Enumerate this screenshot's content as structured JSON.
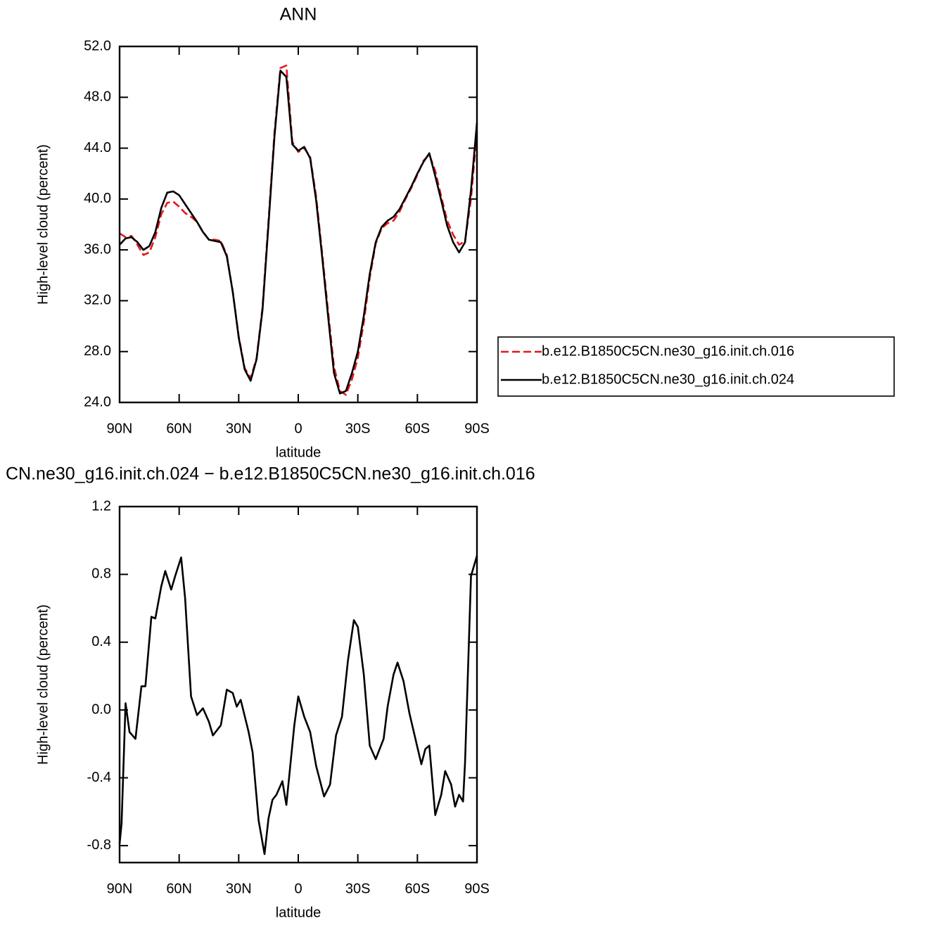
{
  "chart_data": [
    {
      "type": "line",
      "title": "ANN",
      "xlabel": "latitude",
      "ylabel": "High-level cloud (percent)",
      "x": [
        90,
        87,
        84,
        81,
        78,
        75,
        72,
        69,
        66,
        63,
        60,
        57,
        54,
        51,
        48,
        45,
        42,
        39,
        36,
        33,
        30,
        27,
        24,
        21,
        18,
        15,
        12,
        9,
        6,
        3,
        0,
        -3,
        -6,
        -9,
        -12,
        -15,
        -18,
        -21,
        -24,
        -27,
        -30,
        -33,
        -36,
        -39,
        -42,
        -45,
        -48,
        -51,
        -54,
        -57,
        -60,
        -63,
        -66,
        -69,
        -72,
        -75,
        -78,
        -81,
        -84,
        -87,
        -90
      ],
      "series": [
        {
          "name": "b.e12.B1850C5CN.ne30_g16.init.ch.016",
          "color": "#e8161b",
          "dashed": true,
          "values": [
            37.3,
            37.0,
            37.1,
            36.4,
            35.6,
            35.8,
            37.0,
            38.8,
            39.7,
            39.8,
            39.4,
            38.9,
            38.6,
            38.2,
            37.4,
            36.8,
            36.8,
            36.7,
            35.6,
            32.7,
            29.2,
            26.7,
            25.9,
            27.5,
            31.5,
            38.3,
            45.2,
            50.3,
            50.5,
            44.5,
            43.7,
            44.0,
            43.3,
            40.2,
            35.8,
            31.2,
            26.8,
            24.9,
            24.6,
            25.8,
            27.5,
            30.3,
            33.8,
            36.5,
            37.7,
            38.1,
            38.3,
            39.0,
            40.0,
            40.9,
            41.9,
            43.0,
            43.5,
            42.2,
            40.2,
            38.3,
            37.2,
            36.4,
            36.7,
            40.0,
            45.3
          ]
        },
        {
          "name": "b.e12.B1850C5CN.ne30_g16.init.ch.024",
          "color": "#000000",
          "dashed": false,
          "values": [
            36.4,
            36.9,
            37.0,
            36.6,
            36.0,
            36.3,
            37.4,
            39.3,
            40.5,
            40.6,
            40.3,
            39.6,
            38.9,
            38.2,
            37.4,
            36.8,
            36.7,
            36.6,
            35.5,
            32.7,
            29.1,
            26.6,
            25.7,
            27.4,
            31.3,
            38.0,
            44.9,
            50.1,
            49.6,
            44.3,
            43.8,
            44.1,
            43.2,
            39.9,
            35.5,
            30.8,
            26.3,
            24.7,
            24.9,
            26.3,
            28.0,
            30.8,
            34.1,
            36.6,
            37.8,
            38.3,
            38.6,
            39.2,
            40.1,
            41.0,
            42.0,
            42.9,
            43.6,
            41.8,
            39.9,
            37.9,
            36.6,
            35.8,
            36.6,
            40.7,
            46.0
          ]
        }
      ],
      "xlim": [
        90,
        -90
      ],
      "xticks": [
        {
          "value": 90,
          "label": "90N"
        },
        {
          "value": 60,
          "label": "60N"
        },
        {
          "value": 30,
          "label": "30N"
        },
        0,
        {
          "value": -30,
          "label": "30S"
        },
        {
          "value": -60,
          "label": "60S"
        },
        {
          "value": -90,
          "label": "90S"
        }
      ],
      "ylim": [
        24,
        52
      ],
      "yticks": [
        {
          "value": 24,
          "label": "24.0"
        },
        {
          "value": 28,
          "label": "28.0"
        },
        {
          "value": 32,
          "label": "32.0"
        },
        {
          "value": 36,
          "label": "36.0"
        },
        {
          "value": 40,
          "label": "40.0"
        },
        {
          "value": 44,
          "label": "44.0"
        },
        {
          "value": 48,
          "label": "48.0"
        },
        {
          "value": 52,
          "label": "52.0"
        }
      ]
    },
    {
      "type": "line",
      "title": "CN.ne30_g16.init.ch.024 − b.e12.B1850C5CN.ne30_g16.init.ch.016",
      "xlabel": "latitude",
      "ylabel": "High-level cloud (percent)",
      "x": [
        90,
        89,
        87,
        85,
        82,
        79,
        77,
        74,
        72,
        69,
        67,
        64,
        62,
        59,
        57,
        54,
        51,
        48,
        45,
        43,
        39,
        36,
        33,
        31,
        29,
        25,
        23,
        20,
        17,
        15,
        13,
        11,
        8,
        6,
        2,
        0,
        -3,
        -6,
        -9,
        -13,
        -16,
        -19,
        -22,
        -25,
        -28,
        -30,
        -33,
        -36,
        -39,
        -43,
        -45,
        -48,
        -50,
        -53,
        -56,
        -58,
        -62,
        -64,
        -66,
        -69,
        -72,
        -74,
        -77,
        -79,
        -81,
        -83,
        -84,
        -87,
        -90
      ],
      "values": [
        -0.79,
        -0.67,
        0.04,
        -0.13,
        -0.17,
        0.14,
        0.14,
        0.55,
        0.54,
        0.73,
        0.82,
        0.71,
        0.79,
        0.9,
        0.66,
        0.08,
        -0.03,
        0.01,
        -0.07,
        -0.15,
        -0.09,
        0.12,
        0.1,
        0.02,
        0.06,
        -0.13,
        -0.25,
        -0.65,
        -0.85,
        -0.64,
        -0.53,
        -0.5,
        -0.42,
        -0.56,
        -0.09,
        0.08,
        -0.04,
        -0.13,
        -0.33,
        -0.51,
        -0.44,
        -0.15,
        -0.04,
        0.29,
        0.53,
        0.49,
        0.21,
        -0.21,
        -0.29,
        -0.17,
        0.02,
        0.21,
        0.28,
        0.17,
        -0.02,
        -0.12,
        -0.32,
        -0.23,
        -0.21,
        -0.62,
        -0.5,
        -0.36,
        -0.44,
        -0.57,
        -0.5,
        -0.54,
        -0.31,
        0.79,
        0.91
      ],
      "color": "#000000",
      "xlim": [
        90,
        -90
      ],
      "xticks": [
        {
          "value": 90,
          "label": "90N"
        },
        {
          "value": 60,
          "label": "60N"
        },
        {
          "value": 30,
          "label": "30N"
        },
        0,
        {
          "value": -30,
          "label": "30S"
        },
        {
          "value": -60,
          "label": "60S"
        },
        {
          "value": -90,
          "label": "90S"
        }
      ],
      "ylim": [
        -0.9,
        1.2
      ],
      "yticks": [
        -0.8,
        -0.4,
        {
          "value": 0,
          "label": "0.0"
        },
        0.4,
        0.8,
        1.2
      ]
    }
  ]
}
